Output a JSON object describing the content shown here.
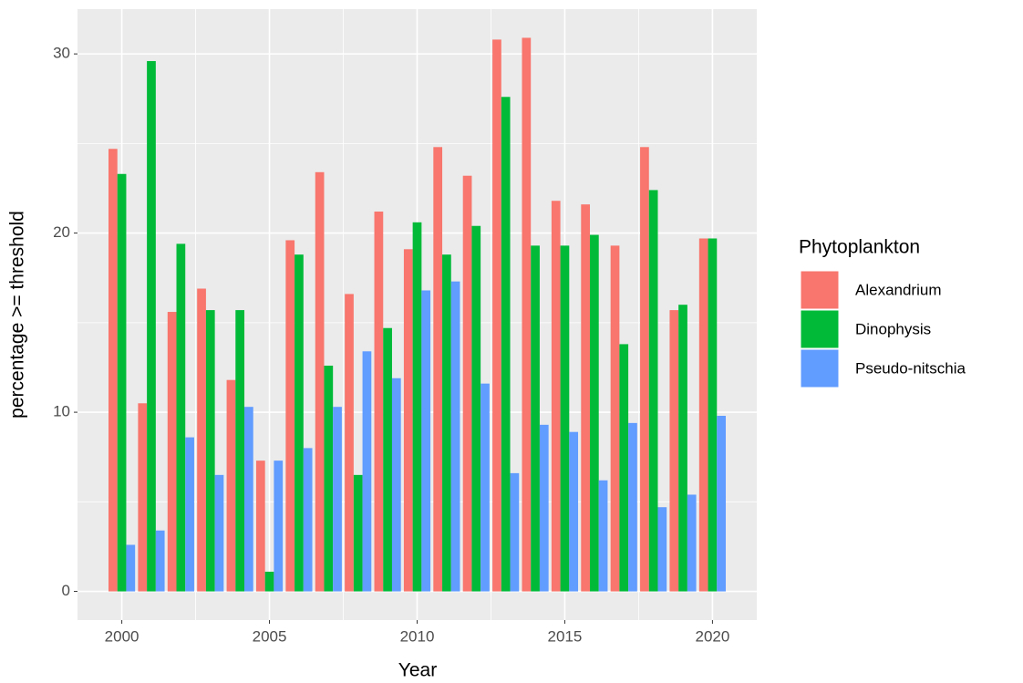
{
  "chart_data": {
    "type": "bar",
    "x_label": "Year",
    "y_label": "percentage >= threshold",
    "legend_title": "Phytoplankton",
    "x": [
      2000,
      2001,
      2002,
      2003,
      2004,
      2005,
      2006,
      2007,
      2008,
      2009,
      2010,
      2011,
      2012,
      2013,
      2014,
      2015,
      2016,
      2017,
      2018,
      2019,
      2020
    ],
    "series": [
      {
        "name": "Alexandrium",
        "color": "#f8766d",
        "values": [
          24.7,
          10.5,
          15.6,
          16.9,
          11.8,
          7.3,
          19.6,
          23.4,
          16.6,
          21.2,
          19.1,
          24.8,
          23.2,
          30.8,
          30.9,
          21.8,
          21.6,
          19.3,
          24.8,
          15.7,
          19.7
        ]
      },
      {
        "name": "Dinophysis",
        "color": "#00ba38",
        "values": [
          23.3,
          29.6,
          19.4,
          15.7,
          15.7,
          1.1,
          18.8,
          12.6,
          6.5,
          14.7,
          20.6,
          18.8,
          20.4,
          27.6,
          19.3,
          19.3,
          19.9,
          13.8,
          22.4,
          16.0,
          19.7
        ]
      },
      {
        "name": "Pseudo-nitschia",
        "color": "#619cff",
        "values": [
          2.6,
          3.4,
          8.6,
          6.5,
          10.3,
          7.3,
          8.0,
          10.3,
          13.4,
          11.9,
          16.8,
          17.3,
          11.6,
          6.6,
          9.3,
          8.9,
          6.2,
          9.4,
          4.7,
          5.4,
          9.8
        ]
      }
    ],
    "xlim": [
      1998.5,
      2021.5
    ],
    "xticks": [
      2000,
      2005,
      2010,
      2015,
      2020
    ],
    "ylim": [
      -1.6,
      32.5
    ],
    "yticks": [
      0,
      10,
      20,
      30
    ],
    "grid": true,
    "legend_position": "right"
  }
}
